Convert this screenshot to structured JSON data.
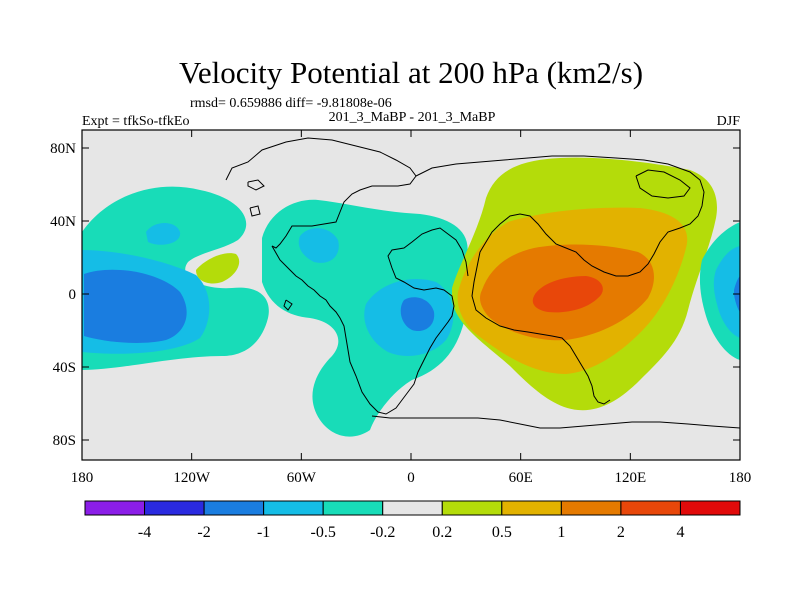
{
  "chart_data": {
    "type": "heatmap",
    "title": "Velocity Potential at 200 hPa (km2/s)",
    "stats": "rmsd= 0.659886 diff= -9.81808e-06",
    "left_label": "Expt = tfkSo-tfkEo",
    "center_label": "201_3_MaBP - 201_3_MaBP",
    "right_label": "DJF",
    "x_ticks": [
      "180",
      "120W",
      "60W",
      "0",
      "60E",
      "120E",
      "180"
    ],
    "y_ticks": [
      "80N",
      "40N",
      "0",
      "40S",
      "80S"
    ],
    "colorbar_labels": [
      "-4",
      "-2",
      "-1",
      "-0.5",
      "-0.2",
      "0.2",
      "0.5",
      "1",
      "2",
      "4"
    ],
    "colorbar_colors": [
      "#8b1ee8",
      "#2a2ae0",
      "#1a7de0",
      "#15bde6",
      "#18dcb8",
      "#e6e6e6",
      "#b4dc0a",
      "#e2b200",
      "#e57a00",
      "#e8470a",
      "#e10a0a"
    ],
    "xlim": [
      -180,
      180
    ],
    "ylim": [
      -90,
      90
    ],
    "regions": [
      {
        "name": "pacific-negative-outer",
        "level": "-0.2",
        "color": "#18dcb8"
      },
      {
        "name": "pacific-negative-mid",
        "level": "-0.5",
        "color": "#15bde6"
      },
      {
        "name": "pacific-negative-core",
        "level": "-1",
        "color": "#1a7de0"
      },
      {
        "name": "americas-negative-outer",
        "level": "-0.2",
        "color": "#18dcb8"
      },
      {
        "name": "atlantic-negative-mid",
        "level": "-0.5",
        "color": "#15bde6"
      },
      {
        "name": "atlantic-negative-core",
        "level": "-1",
        "color": "#1a7de0"
      },
      {
        "name": "indian-ocean-positive-outer",
        "level": "0.2",
        "color": "#b4dc0a"
      },
      {
        "name": "indian-ocean-positive-mid",
        "level": "0.5",
        "color": "#e2b200"
      },
      {
        "name": "indian-ocean-positive-high",
        "level": "1",
        "color": "#e57a00"
      },
      {
        "name": "indian-ocean-positive-core",
        "level": "2",
        "color": "#e8470a"
      },
      {
        "name": "caribbean-positive-patch",
        "level": "0.2",
        "color": "#b4dc0a"
      }
    ]
  }
}
